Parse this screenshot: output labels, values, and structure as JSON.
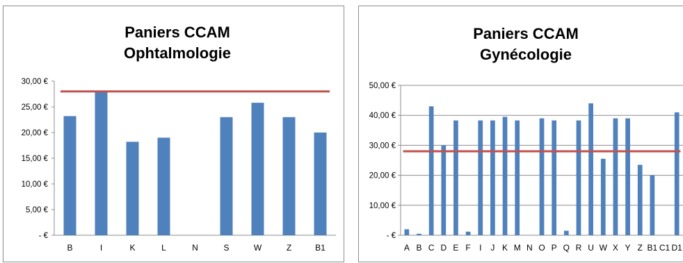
{
  "chart_data": [
    {
      "type": "bar",
      "title": "Paniers CCAM",
      "subtitle": "Ophtalmologie",
      "categories": [
        "B",
        "I",
        "K",
        "L",
        "N",
        "S",
        "W",
        "Z",
        "B1"
      ],
      "values": [
        23.2,
        28.0,
        18.2,
        19.0,
        0,
        23.0,
        25.8,
        23.0,
        20.0
      ],
      "reference_line": 28.0,
      "ylim": [
        0,
        30
      ],
      "yticks": [
        0,
        5,
        10,
        15,
        20,
        25,
        30
      ],
      "ytick_labels": [
        "- €",
        "5,00 €",
        "10,00 €",
        "15,00 €",
        "20,00 €",
        "25,00 €",
        "30,00 €"
      ],
      "grid": false,
      "colors": {
        "bar": "#4f81bd",
        "reference_line": "#c0504d",
        "axis": "#8c8c8c"
      }
    },
    {
      "type": "bar",
      "title": "Paniers CCAM",
      "subtitle": "Gynécologie",
      "categories": [
        "A",
        "B",
        "C",
        "D",
        "E",
        "F",
        "I",
        "J",
        "K",
        "M",
        "N",
        "O",
        "P",
        "Q",
        "R",
        "U",
        "W",
        "X",
        "Y",
        "Z",
        "B1",
        "C1",
        "D1"
      ],
      "values": [
        2.0,
        0.5,
        43.0,
        30.0,
        38.3,
        1.2,
        38.3,
        38.3,
        39.5,
        38.3,
        0,
        39.0,
        38.3,
        1.5,
        38.3,
        44.0,
        25.5,
        39.0,
        39.0,
        23.5,
        20.0,
        0,
        41.0
      ],
      "reference_line": 28.0,
      "ylim": [
        0,
        50
      ],
      "yticks": [
        0,
        10,
        20,
        30,
        40,
        50
      ],
      "ytick_labels": [
        "- €",
        "10,00 €",
        "20,00 €",
        "30,00 €",
        "40,00 €",
        "50,00 €"
      ],
      "grid": true,
      "colors": {
        "bar": "#4f81bd",
        "reference_line": "#c0504d",
        "axis": "#8c8c8c",
        "grid": "#8c8c8c"
      }
    }
  ]
}
